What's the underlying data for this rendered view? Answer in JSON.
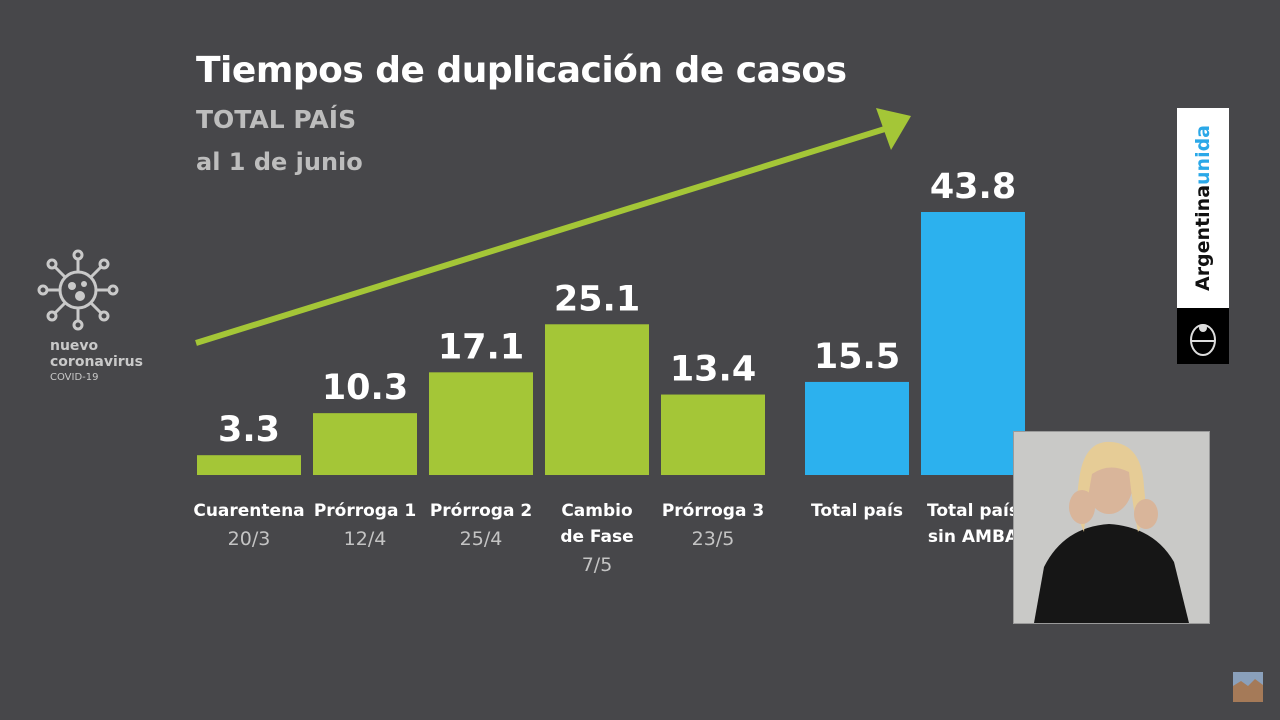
{
  "title": "Tiempos de duplicación de casos",
  "subtitle": "TOTAL PAÍS",
  "date_label": "al 1 de junio",
  "logo": {
    "line1": "nuevo",
    "line2": "coronavirus",
    "line3": "COVID-19",
    "icon": "virus-icon"
  },
  "badge": {
    "word1": "Argentina",
    "word2": "unida",
    "icon": "coat-of-arms-icon"
  },
  "colors": {
    "background": "#47474a",
    "green": "#a4c637",
    "blue": "#2cb1ee",
    "arrow": "#a4c637"
  },
  "chart_data": {
    "type": "bar",
    "title": "Tiempos de duplicación de casos",
    "subtitle": "TOTAL PAÍS",
    "ylim": [
      0,
      45
    ],
    "categories": [
      {
        "label": [
          "Cuarentena"
        ],
        "date": "20/3",
        "value": 3.3,
        "value_label": "3.3",
        "color": "#a4c637"
      },
      {
        "label": [
          "Prórroga 1"
        ],
        "date": "12/4",
        "value": 10.3,
        "value_label": "10.3",
        "color": "#a4c637"
      },
      {
        "label": [
          "Prórroga 2"
        ],
        "date": "25/4",
        "value": 17.1,
        "value_label": "17.1",
        "color": "#a4c637"
      },
      {
        "label": [
          "Cambio",
          "de Fase"
        ],
        "date": "7/5",
        "value": 25.1,
        "value_label": "25.1",
        "color": "#a4c637"
      },
      {
        "label": [
          "Prórroga 3"
        ],
        "date": "23/5",
        "value": 13.4,
        "value_label": "13.4",
        "color": "#a4c637"
      },
      {
        "label": [
          "Total país"
        ],
        "date": "",
        "value": 15.5,
        "value_label": "15.5",
        "color": "#2cb1ee"
      },
      {
        "label": [
          "Total país",
          "sin AMBA"
        ],
        "date": "",
        "value": 43.8,
        "value_label": "43.8",
        "color": "#2cb1ee"
      }
    ]
  }
}
